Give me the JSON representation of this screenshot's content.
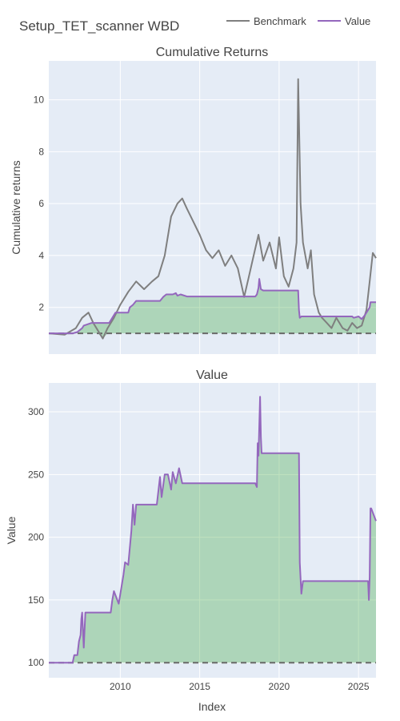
{
  "title": "Setup_TET_scanner WBD",
  "legend": {
    "placement": "top-right",
    "items": [
      {
        "label": "Benchmark",
        "color": "#7f7f7f"
      },
      {
        "label": "Value",
        "color": "#9467bd"
      }
    ]
  },
  "colors": {
    "benchmark": "#7f7f7f",
    "value": "#9467bd",
    "fill_green": "#2ca02c",
    "plot_bg": "#e5ecf6",
    "grid": "#ffffff",
    "dash": "#696969"
  },
  "chart_data": [
    {
      "type": "line",
      "title": "Cumulative Returns",
      "ylabel": "Cumulative returns",
      "xlabel": "",
      "xlim": [
        2005.5,
        2026.1
      ],
      "ylim": [
        0.2,
        11.5
      ],
      "yticks": [
        2,
        4,
        6,
        8,
        10
      ],
      "ytick_labels": [
        "2",
        "4",
        "6",
        "8",
        "10"
      ],
      "xticks": [
        2010,
        2015,
        2020,
        2025
      ],
      "grid": true,
      "baseline": 1,
      "series": [
        {
          "name": "Benchmark",
          "x": [
            2005.5,
            2006.5,
            2007.2,
            2007.6,
            2008.0,
            2008.3,
            2008.6,
            2008.9,
            2009.2,
            2009.6,
            2010.0,
            2010.5,
            2011.0,
            2011.5,
            2012.0,
            2012.4,
            2012.8,
            2013.2,
            2013.6,
            2013.9,
            2014.2,
            2014.6,
            2015.0,
            2015.4,
            2015.8,
            2016.2,
            2016.6,
            2017.0,
            2017.4,
            2017.8,
            2018.1,
            2018.4,
            2018.7,
            2019.0,
            2019.4,
            2019.8,
            2020.0,
            2020.3,
            2020.6,
            2020.9,
            2021.1,
            2021.2,
            2021.35,
            2021.5,
            2021.8,
            2022.0,
            2022.2,
            2022.5,
            2022.7,
            2023.0,
            2023.3,
            2023.6,
            2024.0,
            2024.3,
            2024.6,
            2024.9,
            2025.2,
            2025.5,
            2025.7,
            2025.9,
            2026.1
          ],
          "y": [
            1.0,
            0.95,
            1.2,
            1.6,
            1.8,
            1.4,
            1.1,
            0.8,
            1.2,
            1.6,
            2.1,
            2.6,
            3.0,
            2.7,
            3.0,
            3.2,
            4.0,
            5.5,
            6.0,
            6.2,
            5.8,
            5.3,
            4.8,
            4.2,
            3.9,
            4.2,
            3.6,
            4.0,
            3.5,
            2.4,
            3.2,
            4.0,
            4.8,
            3.8,
            4.5,
            3.5,
            4.7,
            3.2,
            2.8,
            3.5,
            4.5,
            10.8,
            6.0,
            4.5,
            3.5,
            4.2,
            2.5,
            1.8,
            1.6,
            1.4,
            1.2,
            1.6,
            1.2,
            1.1,
            1.4,
            1.2,
            1.3,
            1.9,
            3.0,
            4.1,
            3.9
          ]
        },
        {
          "name": "Value",
          "x": [
            2005.5,
            2007.0,
            2007.3,
            2007.4,
            2007.6,
            2007.7,
            2008.2,
            2009.3,
            2009.5,
            2009.7,
            2010.5,
            2010.6,
            2010.8,
            2011.0,
            2012.5,
            2012.7,
            2012.9,
            2013.3,
            2013.5,
            2013.6,
            2013.8,
            2014.2,
            2018.5,
            2018.6,
            2018.7,
            2018.75,
            2018.85,
            2019.0,
            2021.2,
            2021.25,
            2021.3,
            2021.4,
            2024.6,
            2024.7,
            2025.0,
            2025.2,
            2025.4,
            2025.7,
            2025.75,
            2026.1
          ],
          "y": [
            1.0,
            1.0,
            1.05,
            1.1,
            1.2,
            1.3,
            1.4,
            1.4,
            1.6,
            1.8,
            1.8,
            2.0,
            2.1,
            2.25,
            2.25,
            2.4,
            2.5,
            2.5,
            2.55,
            2.45,
            2.5,
            2.42,
            2.42,
            2.5,
            2.75,
            3.1,
            2.7,
            2.65,
            2.65,
            1.9,
            1.6,
            1.65,
            1.65,
            1.6,
            1.65,
            1.55,
            1.7,
            2.0,
            2.2,
            2.2
          ]
        }
      ]
    },
    {
      "type": "area",
      "title": "Value",
      "ylabel": "Value",
      "xlabel": "Index",
      "xlim": [
        2005.5,
        2026.1
      ],
      "ylim": [
        88,
        323
      ],
      "yticks": [
        100,
        150,
        200,
        250,
        300
      ],
      "ytick_labels": [
        "100",
        "150",
        "200",
        "250",
        "300"
      ],
      "xticks": [
        2010,
        2015,
        2020,
        2025
      ],
      "xtick_labels": [
        "2010",
        "2015",
        "2020",
        "2025"
      ],
      "grid": true,
      "baseline": 100,
      "series": [
        {
          "name": "Value",
          "x": [
            2005.5,
            2007.0,
            2007.1,
            2007.3,
            2007.4,
            2007.5,
            2007.55,
            2007.6,
            2007.7,
            2007.8,
            2008.0,
            2009.4,
            2009.5,
            2009.6,
            2009.9,
            2010.2,
            2010.3,
            2010.5,
            2010.7,
            2010.8,
            2010.9,
            2011.0,
            2011.5,
            2012.3,
            2012.5,
            2012.6,
            2012.8,
            2013.0,
            2013.2,
            2013.3,
            2013.5,
            2013.7,
            2013.9,
            2014.5,
            2018.5,
            2018.6,
            2018.65,
            2018.7,
            2018.8,
            2018.85,
            2018.9,
            2019.0,
            2021.2,
            2021.25,
            2021.3,
            2021.4,
            2021.5,
            2025.5,
            2025.6,
            2025.65,
            2025.7,
            2025.75,
            2025.8,
            2026.1
          ],
          "y": [
            100,
            100,
            106,
            106,
            117,
            122,
            135,
            140,
            112,
            140,
            140,
            140,
            150,
            157,
            147,
            170,
            180,
            178,
            205,
            226,
            210,
            226,
            226,
            226,
            248,
            232,
            250,
            250,
            238,
            252,
            243,
            255,
            243,
            243,
            243,
            240,
            275,
            265,
            312,
            280,
            267,
            267,
            267,
            267,
            180,
            155,
            165,
            165,
            165,
            150,
            168,
            223,
            223,
            213
          ]
        }
      ]
    }
  ]
}
